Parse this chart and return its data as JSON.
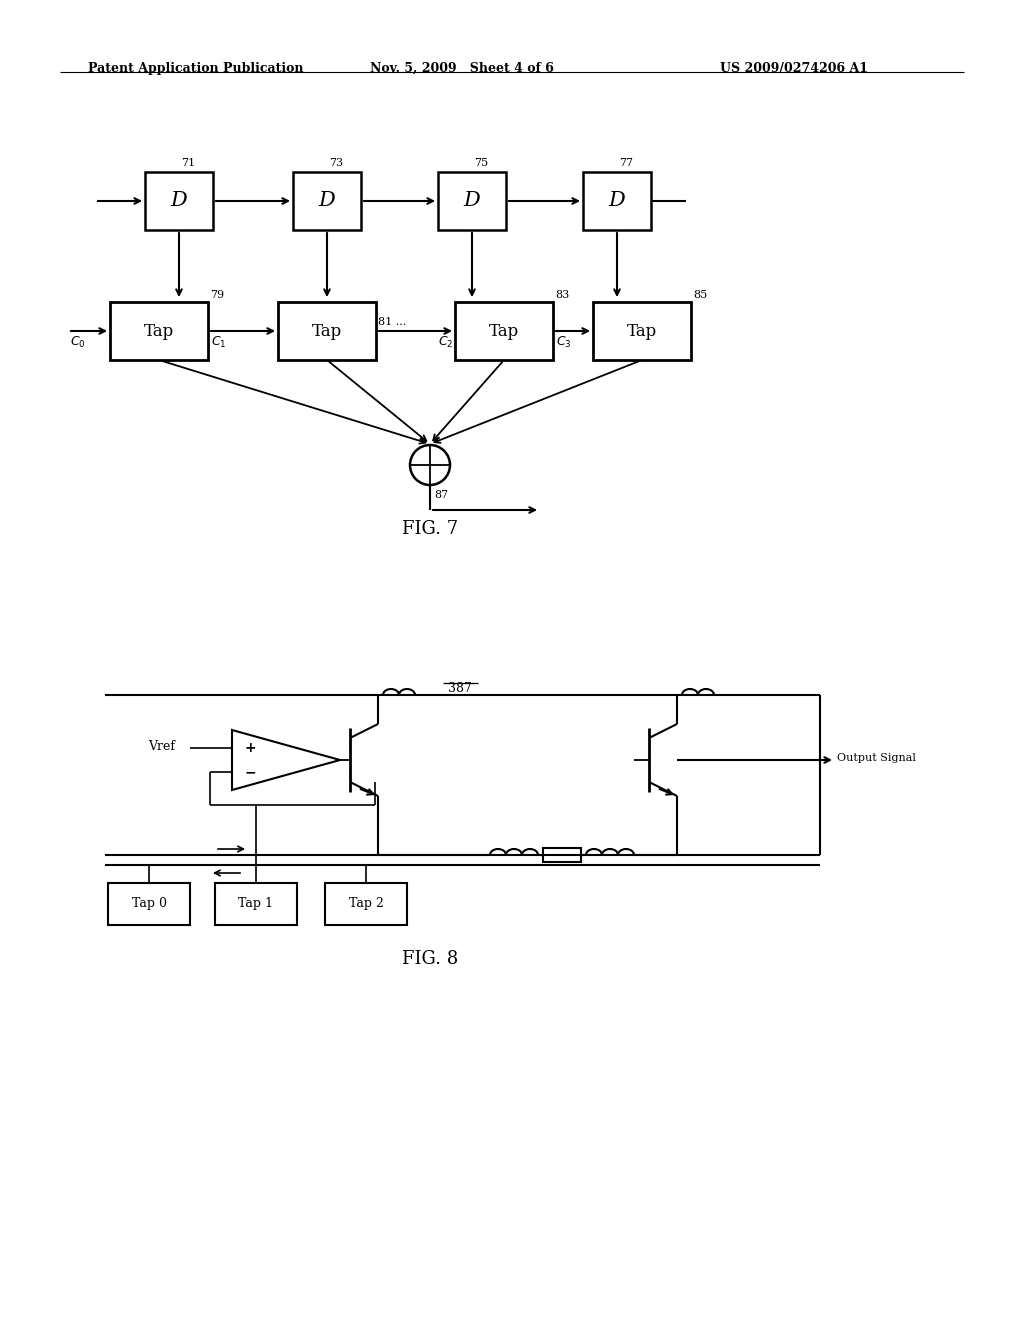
{
  "background_color": "#ffffff",
  "header_left": "Patent Application Publication",
  "header_mid": "Nov. 5, 2009   Sheet 4 of 6",
  "header_right": "US 2009/0274206 A1",
  "fig7_label": "FIG. 7",
  "fig8_label": "FIG. 8",
  "text_color": "#000000",
  "line_color": "#000000"
}
